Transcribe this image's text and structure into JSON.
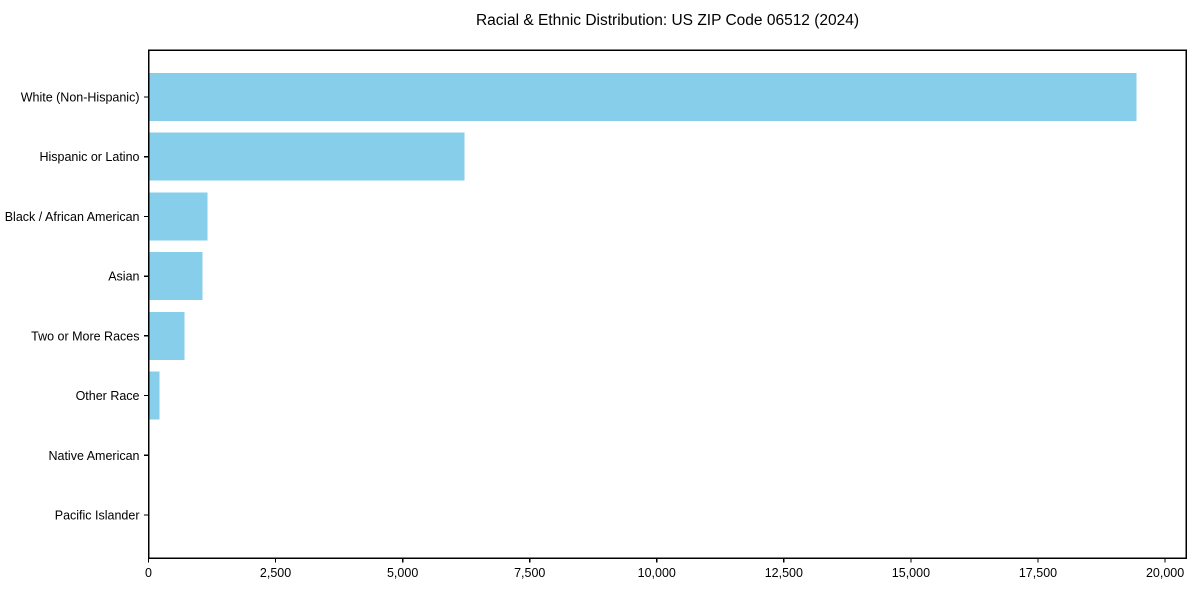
{
  "figure": {
    "background": "#ffffff",
    "text_color": "#000000",
    "spine_color": "#000000"
  },
  "chart_data": {
    "type": "bar",
    "orientation": "horizontal",
    "title": "Racial & Ethnic Distribution: US ZIP Code 06512 (2024)",
    "categories": [
      "White (Non-Hispanic)",
      "Hispanic or Latino",
      "Black / African American",
      "Asian",
      "Two or More Races",
      "Other Race",
      "Native American",
      "Pacific Islander"
    ],
    "values": [
      19440,
      6220,
      1160,
      1060,
      710,
      220,
      0,
      0
    ],
    "bar_color": "#87CEEB",
    "xlabel": "",
    "ylabel": "",
    "xlim": [
      0,
      20412
    ],
    "x_ticks": [
      0,
      2500,
      5000,
      7500,
      10000,
      12500,
      15000,
      17500,
      20000
    ],
    "x_tick_labels": [
      "0",
      "2,500",
      "5,000",
      "7,500",
      "10,000",
      "12,500",
      "15,000",
      "17,500",
      "20,000"
    ],
    "grid": false,
    "legend": "none"
  }
}
